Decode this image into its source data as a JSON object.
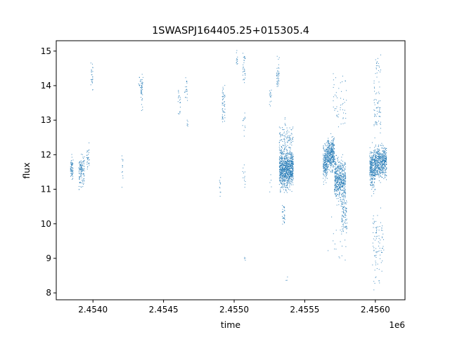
{
  "chart_data": {
    "type": "scatter",
    "title": "1SWASPJ164405.25+015305.4",
    "xlabel": "time",
    "ylabel": "flux",
    "x_offset_label": "1e6",
    "xlim": [
      2453740,
      2456210
    ],
    "ylim": [
      7.8,
      15.3
    ],
    "x_ticks": [
      2454000,
      2454500,
      2455000,
      2455500,
      2456000
    ],
    "x_tick_labels": [
      "2.4540",
      "2.4545",
      "2.4550",
      "2.4555",
      "2.4560"
    ],
    "y_ticks": [
      8,
      9,
      10,
      11,
      12,
      13,
      14,
      15
    ],
    "y_tick_labels": [
      "8",
      "9",
      "10",
      "11",
      "12",
      "13",
      "14",
      "15"
    ],
    "grid": false,
    "marker_color": "#1f77b4",
    "clusters": [
      {
        "x": [
          2453840,
          2453860
        ],
        "y_center": 11.6,
        "y_spread": 0.3,
        "n": 60
      },
      {
        "x": [
          2453900,
          2453940
        ],
        "y_center": 11.5,
        "y_spread": 0.45,
        "n": 120
      },
      {
        "x": [
          2453955,
          2453975
        ],
        "y_center": 11.9,
        "y_spread": 0.35,
        "n": 30
      },
      {
        "x": [
          2453985,
          2454000
        ],
        "y_center": 14.3,
        "y_spread": 0.35,
        "n": 25
      },
      {
        "x": [
          2454205,
          2454215
        ],
        "y_center": 11.5,
        "y_spread": 0.6,
        "n": 12
      },
      {
        "x": [
          2454320,
          2454340
        ],
        "y_center": 14.1,
        "y_spread": 0.15,
        "n": 10
      },
      {
        "x": [
          2454340,
          2454355
        ],
        "y_center": 13.8,
        "y_spread": 0.6,
        "n": 40
      },
      {
        "x": [
          2454600,
          2454620
        ],
        "y_center": 13.6,
        "y_spread": 0.5,
        "n": 20
      },
      {
        "x": [
          2454650,
          2454670
        ],
        "y_center": 13.9,
        "y_spread": 0.35,
        "n": 20
      },
      {
        "x": [
          2454665,
          2454675
        ],
        "y_center": 12.9,
        "y_spread": 0.15,
        "n": 6
      },
      {
        "x": [
          2454895,
          2454905
        ],
        "y_center": 11.0,
        "y_spread": 0.5,
        "n": 10
      },
      {
        "x": [
          2454915,
          2454935
        ],
        "y_center": 13.5,
        "y_spread": 0.6,
        "n": 50
      },
      {
        "x": [
          2455015,
          2455025
        ],
        "y_center": 14.8,
        "y_spread": 0.2,
        "n": 12
      },
      {
        "x": [
          2455060,
          2455080
        ],
        "y_center": 14.5,
        "y_spread": 0.45,
        "n": 30
      },
      {
        "x": [
          2455060,
          2455080
        ],
        "y_center": 12.9,
        "y_spread": 0.3,
        "n": 12
      },
      {
        "x": [
          2455060,
          2455080
        ],
        "y_center": 11.3,
        "y_spread": 0.4,
        "n": 12
      },
      {
        "x": [
          2455070,
          2455080
        ],
        "y_center": 9.0,
        "y_spread": 0.1,
        "n": 4
      },
      {
        "x": [
          2455250,
          2455265
        ],
        "y_center": 13.7,
        "y_spread": 0.3,
        "n": 15
      },
      {
        "x": [
          2455250,
          2455265
        ],
        "y_center": 11.2,
        "y_spread": 0.2,
        "n": 5
      },
      {
        "x": [
          2455300,
          2455320
        ],
        "y_center": 14.3,
        "y_spread": 0.45,
        "n": 40
      },
      {
        "x": [
          2455320,
          2455420
        ],
        "y_center": 11.6,
        "y_spread": 0.55,
        "n": 900
      },
      {
        "x": [
          2455320,
          2455420
        ],
        "y_center": 12.5,
        "y_spread": 0.4,
        "n": 100
      },
      {
        "x": [
          2455340,
          2455360
        ],
        "y_center": 10.3,
        "y_spread": 0.3,
        "n": 30
      },
      {
        "x": [
          2455360,
          2455380
        ],
        "y_center": 8.4,
        "y_spread": 0.15,
        "n": 3
      },
      {
        "x": [
          2455630,
          2455660
        ],
        "y_center": 11.8,
        "y_spread": 0.5,
        "n": 200
      },
      {
        "x": [
          2455660,
          2455710
        ],
        "y_center": 12.0,
        "y_spread": 0.45,
        "n": 350
      },
      {
        "x": [
          2455710,
          2455790
        ],
        "y_center": 11.3,
        "y_spread": 0.6,
        "n": 500
      },
      {
        "x": [
          2455760,
          2455800
        ],
        "y_center": 10.3,
        "y_spread": 0.5,
        "n": 100
      },
      {
        "x": [
          2455700,
          2455800
        ],
        "y_center": 13.6,
        "y_spread": 0.8,
        "n": 50
      },
      {
        "x": [
          2455660,
          2455800
        ],
        "y_center": 9.5,
        "y_spread": 0.7,
        "n": 20
      },
      {
        "x": [
          2455960,
          2456000
        ],
        "y_center": 11.6,
        "y_spread": 0.55,
        "n": 300
      },
      {
        "x": [
          2456000,
          2456080
        ],
        "y_center": 11.8,
        "y_spread": 0.45,
        "n": 500
      },
      {
        "x": [
          2455990,
          2456040
        ],
        "y_center": 13.3,
        "y_spread": 0.9,
        "n": 60
      },
      {
        "x": [
          2455980,
          2456060
        ],
        "y_center": 9.5,
        "y_spread": 0.9,
        "n": 80
      },
      {
        "x": [
          2456000,
          2456040
        ],
        "y_center": 14.5,
        "y_spread": 0.35,
        "n": 20
      },
      {
        "x": [
          2455980,
          2456030
        ],
        "y_center": 8.3,
        "y_spread": 0.2,
        "n": 8
      }
    ]
  }
}
